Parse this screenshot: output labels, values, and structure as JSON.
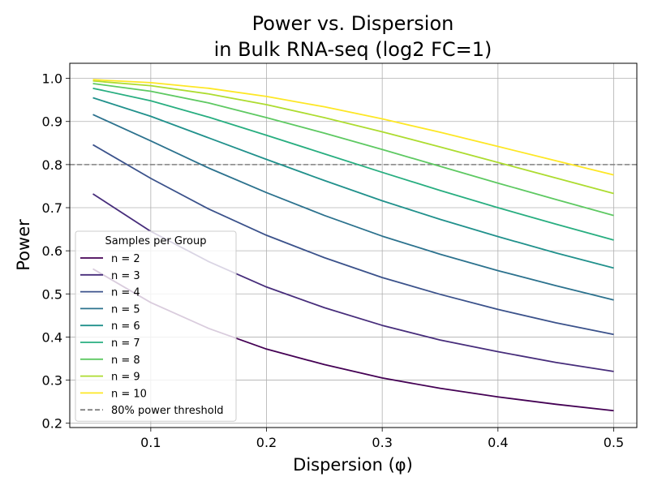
{
  "chart_data": {
    "type": "line",
    "title_lines": [
      "Power vs. Dispersion",
      "in Bulk RNA-seq (log2 FC=1)"
    ],
    "xlabel": "Dispersion (φ)",
    "ylabel": "Power",
    "xlim": [
      0.03,
      0.52
    ],
    "ylim": [
      0.19,
      1.035
    ],
    "xticks": [
      0.1,
      0.2,
      0.3,
      0.4,
      0.5
    ],
    "yticks": [
      0.2,
      0.3,
      0.4,
      0.5,
      0.6,
      0.7,
      0.8,
      0.9,
      1.0
    ],
    "grid": true,
    "legend": {
      "title": "Samples per Group",
      "placement": "lower-left"
    },
    "x": [
      0.05,
      0.1,
      0.15,
      0.2,
      0.25,
      0.3,
      0.35,
      0.4,
      0.45,
      0.5
    ],
    "series": [
      {
        "name": "n = 2",
        "color": "#440154",
        "values": [
          0.558,
          0.48,
          0.42,
          0.372,
          0.336,
          0.305,
          0.281,
          0.261,
          0.244,
          0.229
        ]
      },
      {
        "name": "n = 3",
        "color": "#472d7b",
        "values": [
          0.732,
          0.645,
          0.575,
          0.516,
          0.468,
          0.427,
          0.393,
          0.366,
          0.341,
          0.32
        ]
      },
      {
        "name": "n = 4",
        "color": "#3b528b",
        "values": [
          0.846,
          0.768,
          0.697,
          0.636,
          0.584,
          0.538,
          0.499,
          0.464,
          0.433,
          0.406
        ]
      },
      {
        "name": "n = 5",
        "color": "#2c728e",
        "values": [
          0.916,
          0.855,
          0.792,
          0.735,
          0.682,
          0.634,
          0.592,
          0.554,
          0.519,
          0.486
        ]
      },
      {
        "name": "n = 6",
        "color": "#21918c",
        "values": [
          0.955,
          0.912,
          0.862,
          0.812,
          0.763,
          0.716,
          0.673,
          0.633,
          0.595,
          0.56
        ]
      },
      {
        "name": "n = 7",
        "color": "#28ae80",
        "values": [
          0.977,
          0.948,
          0.91,
          0.868,
          0.825,
          0.782,
          0.74,
          0.7,
          0.662,
          0.625
        ]
      },
      {
        "name": "n = 8",
        "color": "#5ec962",
        "values": [
          0.988,
          0.97,
          0.943,
          0.909,
          0.873,
          0.835,
          0.796,
          0.757,
          0.719,
          0.682
        ]
      },
      {
        "name": "n = 9",
        "color": "#addc30",
        "values": [
          0.994,
          0.983,
          0.964,
          0.939,
          0.909,
          0.876,
          0.841,
          0.805,
          0.769,
          0.733
        ]
      },
      {
        "name": "n = 10",
        "color": "#fde725",
        "values": [
          0.997,
          0.99,
          0.977,
          0.958,
          0.934,
          0.906,
          0.875,
          0.842,
          0.809,
          0.776
        ]
      }
    ],
    "threshold": {
      "name": "80% power threshold",
      "value": 0.8,
      "color": "#808080"
    }
  }
}
